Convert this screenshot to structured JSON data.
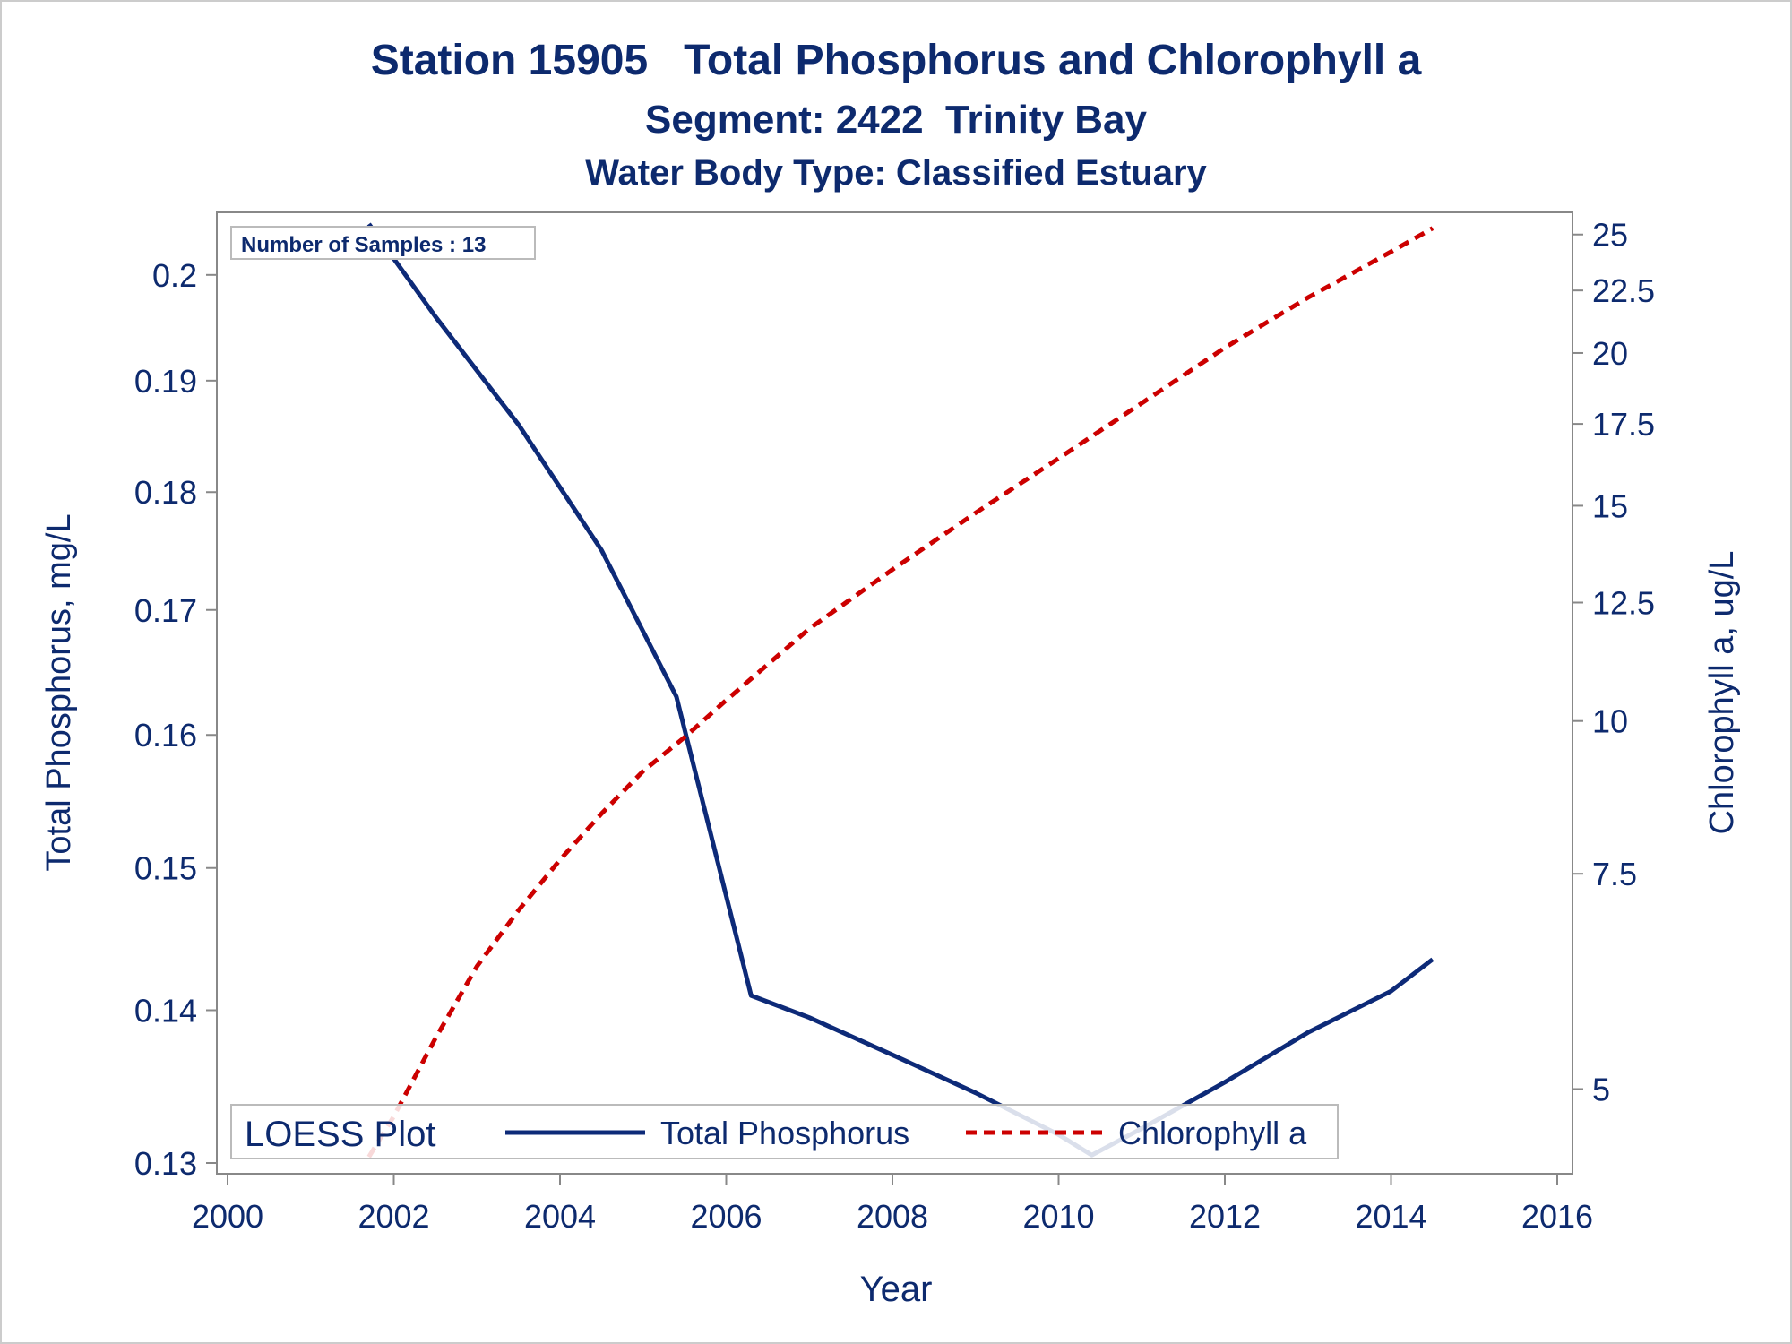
{
  "title": "Station 15905   Total Phosphorus and Chlorophyll a",
  "subtitle": "Segment: 2422  Trinity Bay",
  "subtitle2": "Water Body Type: Classified Estuary",
  "sample_note": "Number of Samples : 13",
  "legend": {
    "title": "LOESS Plot",
    "series1": "Total Phosphorus",
    "series2": "Chlorophyll a",
    "placement": "bottom-inside"
  },
  "colors": {
    "text": "#0d2a6e",
    "phosphorus": "#0d2a78",
    "chlorophyll": "#cc0000",
    "axis": "#888888"
  },
  "chart_data": {
    "type": "line",
    "xlabel": "Year",
    "ylabel": "Total Phosphorus, mg/L",
    "y2label": "Chlorophyll a, ug/L",
    "xlim": [
      2000,
      2016
    ],
    "ylim": [
      0.13,
      0.205
    ],
    "y_scale": "log",
    "y2lim": [
      4.35,
      25.5
    ],
    "y2_scale": "log",
    "grid": false,
    "x_ticks": [
      "2000",
      "2002",
      "2004",
      "2006",
      "2008",
      "2010",
      "2012",
      "2014",
      "2016"
    ],
    "y_ticks": [
      "0.13",
      "0.14",
      "0.15",
      "0.16",
      "0.17",
      "0.18",
      "0.19",
      "0.2"
    ],
    "y2_ticks": [
      "5",
      "7.5",
      "10",
      "12.5",
      "15",
      "17.5",
      "20",
      "22.5",
      "25"
    ],
    "series": [
      {
        "name": "Total Phosphorus",
        "axis": "left",
        "style": "solid",
        "x": [
          2001.7,
          2002.5,
          2003.5,
          2004.5,
          2005.4,
          2006.3,
          2007.0,
          2008.0,
          2009.0,
          2010.0,
          2010.4,
          2011.0,
          2012.0,
          2013.0,
          2014.0,
          2014.5
        ],
        "y": [
          0.205,
          0.196,
          0.186,
          0.175,
          0.163,
          0.141,
          0.1395,
          0.137,
          0.1345,
          0.1318,
          0.1305,
          0.1322,
          0.1352,
          0.1385,
          0.1413,
          0.1435
        ]
      },
      {
        "name": "Chlorophyll a",
        "axis": "right",
        "style": "dashed",
        "x": [
          2001.7,
          2002.0,
          2002.5,
          2003.0,
          2003.5,
          2004.0,
          2004.5,
          2005.0,
          2005.5,
          2006.0,
          2007.0,
          2008.0,
          2009.0,
          2010.0,
          2011.0,
          2012.0,
          2013.0,
          2014.0,
          2014.5
        ],
        "y": [
          4.4,
          4.75,
          5.5,
          6.3,
          7.0,
          7.7,
          8.4,
          9.1,
          9.7,
          10.4,
          11.9,
          13.3,
          14.8,
          16.4,
          18.2,
          20.2,
          22.2,
          24.2,
          25.3
        ]
      }
    ]
  }
}
